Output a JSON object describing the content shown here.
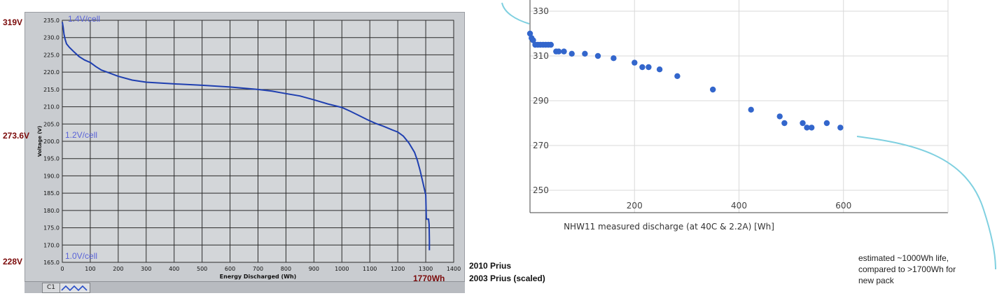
{
  "left_labels": {
    "top": "319V",
    "middle": "273.6V",
    "bottom": "228V",
    "cell_top": "1.4V/cell",
    "cell_middle": "1.2V/cell",
    "cell_bottom": "1.0V/cell",
    "end_energy": "1770Wh"
  },
  "legend": {
    "line1": "2010 Prius",
    "line2": "2003 Prius (scaled)"
  },
  "panel": {
    "tag": "C1"
  },
  "annotation": {
    "line1": "estimated ~1000Wh life,",
    "line2": "compared to >1700Wh for",
    "line3": "new pack"
  },
  "colors": {
    "left_line": "#1f3fb0",
    "right_points": "#3366cc",
    "cyan_curve": "#7fd0e0"
  },
  "chart_data": [
    {
      "type": "line",
      "xlabel": "Energy Discharged (Wh)",
      "ylabel": "Voltage (V)",
      "xlim": [
        0,
        1400
      ],
      "ylim": [
        165,
        235
      ],
      "xticks": [
        0,
        100,
        200,
        300,
        400,
        500,
        600,
        700,
        800,
        900,
        1000,
        1100,
        1200,
        1300,
        1400
      ],
      "yticks": [
        165.0,
        170.0,
        175.0,
        180.0,
        185.0,
        190.0,
        195.0,
        200.0,
        205.0,
        210.0,
        215.0,
        220.0,
        225.0,
        230.0,
        235.0
      ],
      "grid": true,
      "series": [
        {
          "x": [
            0,
            3,
            6,
            10,
            15,
            25,
            40,
            60,
            80,
            100,
            120,
            140,
            160,
            200,
            250,
            300,
            400,
            500,
            600,
            700,
            750,
            800,
            850,
            900,
            950,
            1000,
            1030,
            1060,
            1090,
            1120,
            1150,
            1180,
            1200,
            1220,
            1240,
            1260,
            1270,
            1280,
            1290,
            1297,
            1300,
            1301,
            1302,
            1303,
            1305,
            1310,
            1312,
            1313,
            1313
          ],
          "y": [
            234.5,
            233.0,
            231.0,
            229.5,
            228.2,
            227.2,
            226.0,
            224.5,
            223.5,
            222.8,
            221.6,
            220.6,
            220.0,
            218.8,
            217.7,
            217.1,
            216.6,
            216.2,
            215.7,
            215.0,
            214.5,
            213.8,
            213.1,
            212.0,
            210.8,
            209.8,
            208.7,
            207.5,
            206.3,
            205.2,
            204.3,
            203.3,
            202.7,
            201.5,
            199.5,
            196.8,
            194.5,
            191.5,
            188.0,
            185.5,
            184.5,
            181.0,
            178.0,
            177.5,
            177.5,
            177.5,
            176.0,
            171.5,
            168.5
          ]
        }
      ]
    },
    {
      "type": "scatter",
      "xlabel": "NHW11 measured discharge (at 40C & 2.2A)    [Wh]",
      "xlim": [
        0,
        800
      ],
      "ylim": [
        240,
        335
      ],
      "xticks": [
        200,
        400,
        600
      ],
      "yticks": [
        250,
        270,
        290,
        310,
        330
      ],
      "grid": true,
      "series": [
        {
          "x": [
            0,
            3,
            6,
            10,
            15,
            20,
            25,
            30,
            35,
            40,
            50,
            55,
            65,
            80,
            105,
            130,
            160,
            200,
            215,
            227,
            248,
            282,
            350,
            423,
            478,
            487,
            522,
            530,
            539,
            568,
            594
          ],
          "y": [
            320,
            318,
            317,
            315,
            315,
            315,
            315,
            315,
            315,
            315,
            312,
            312,
            312,
            311,
            311,
            310,
            309,
            307,
            305,
            305,
            304,
            301,
            295,
            286,
            283,
            280,
            280,
            278,
            278,
            280,
            278
          ]
        }
      ]
    }
  ]
}
